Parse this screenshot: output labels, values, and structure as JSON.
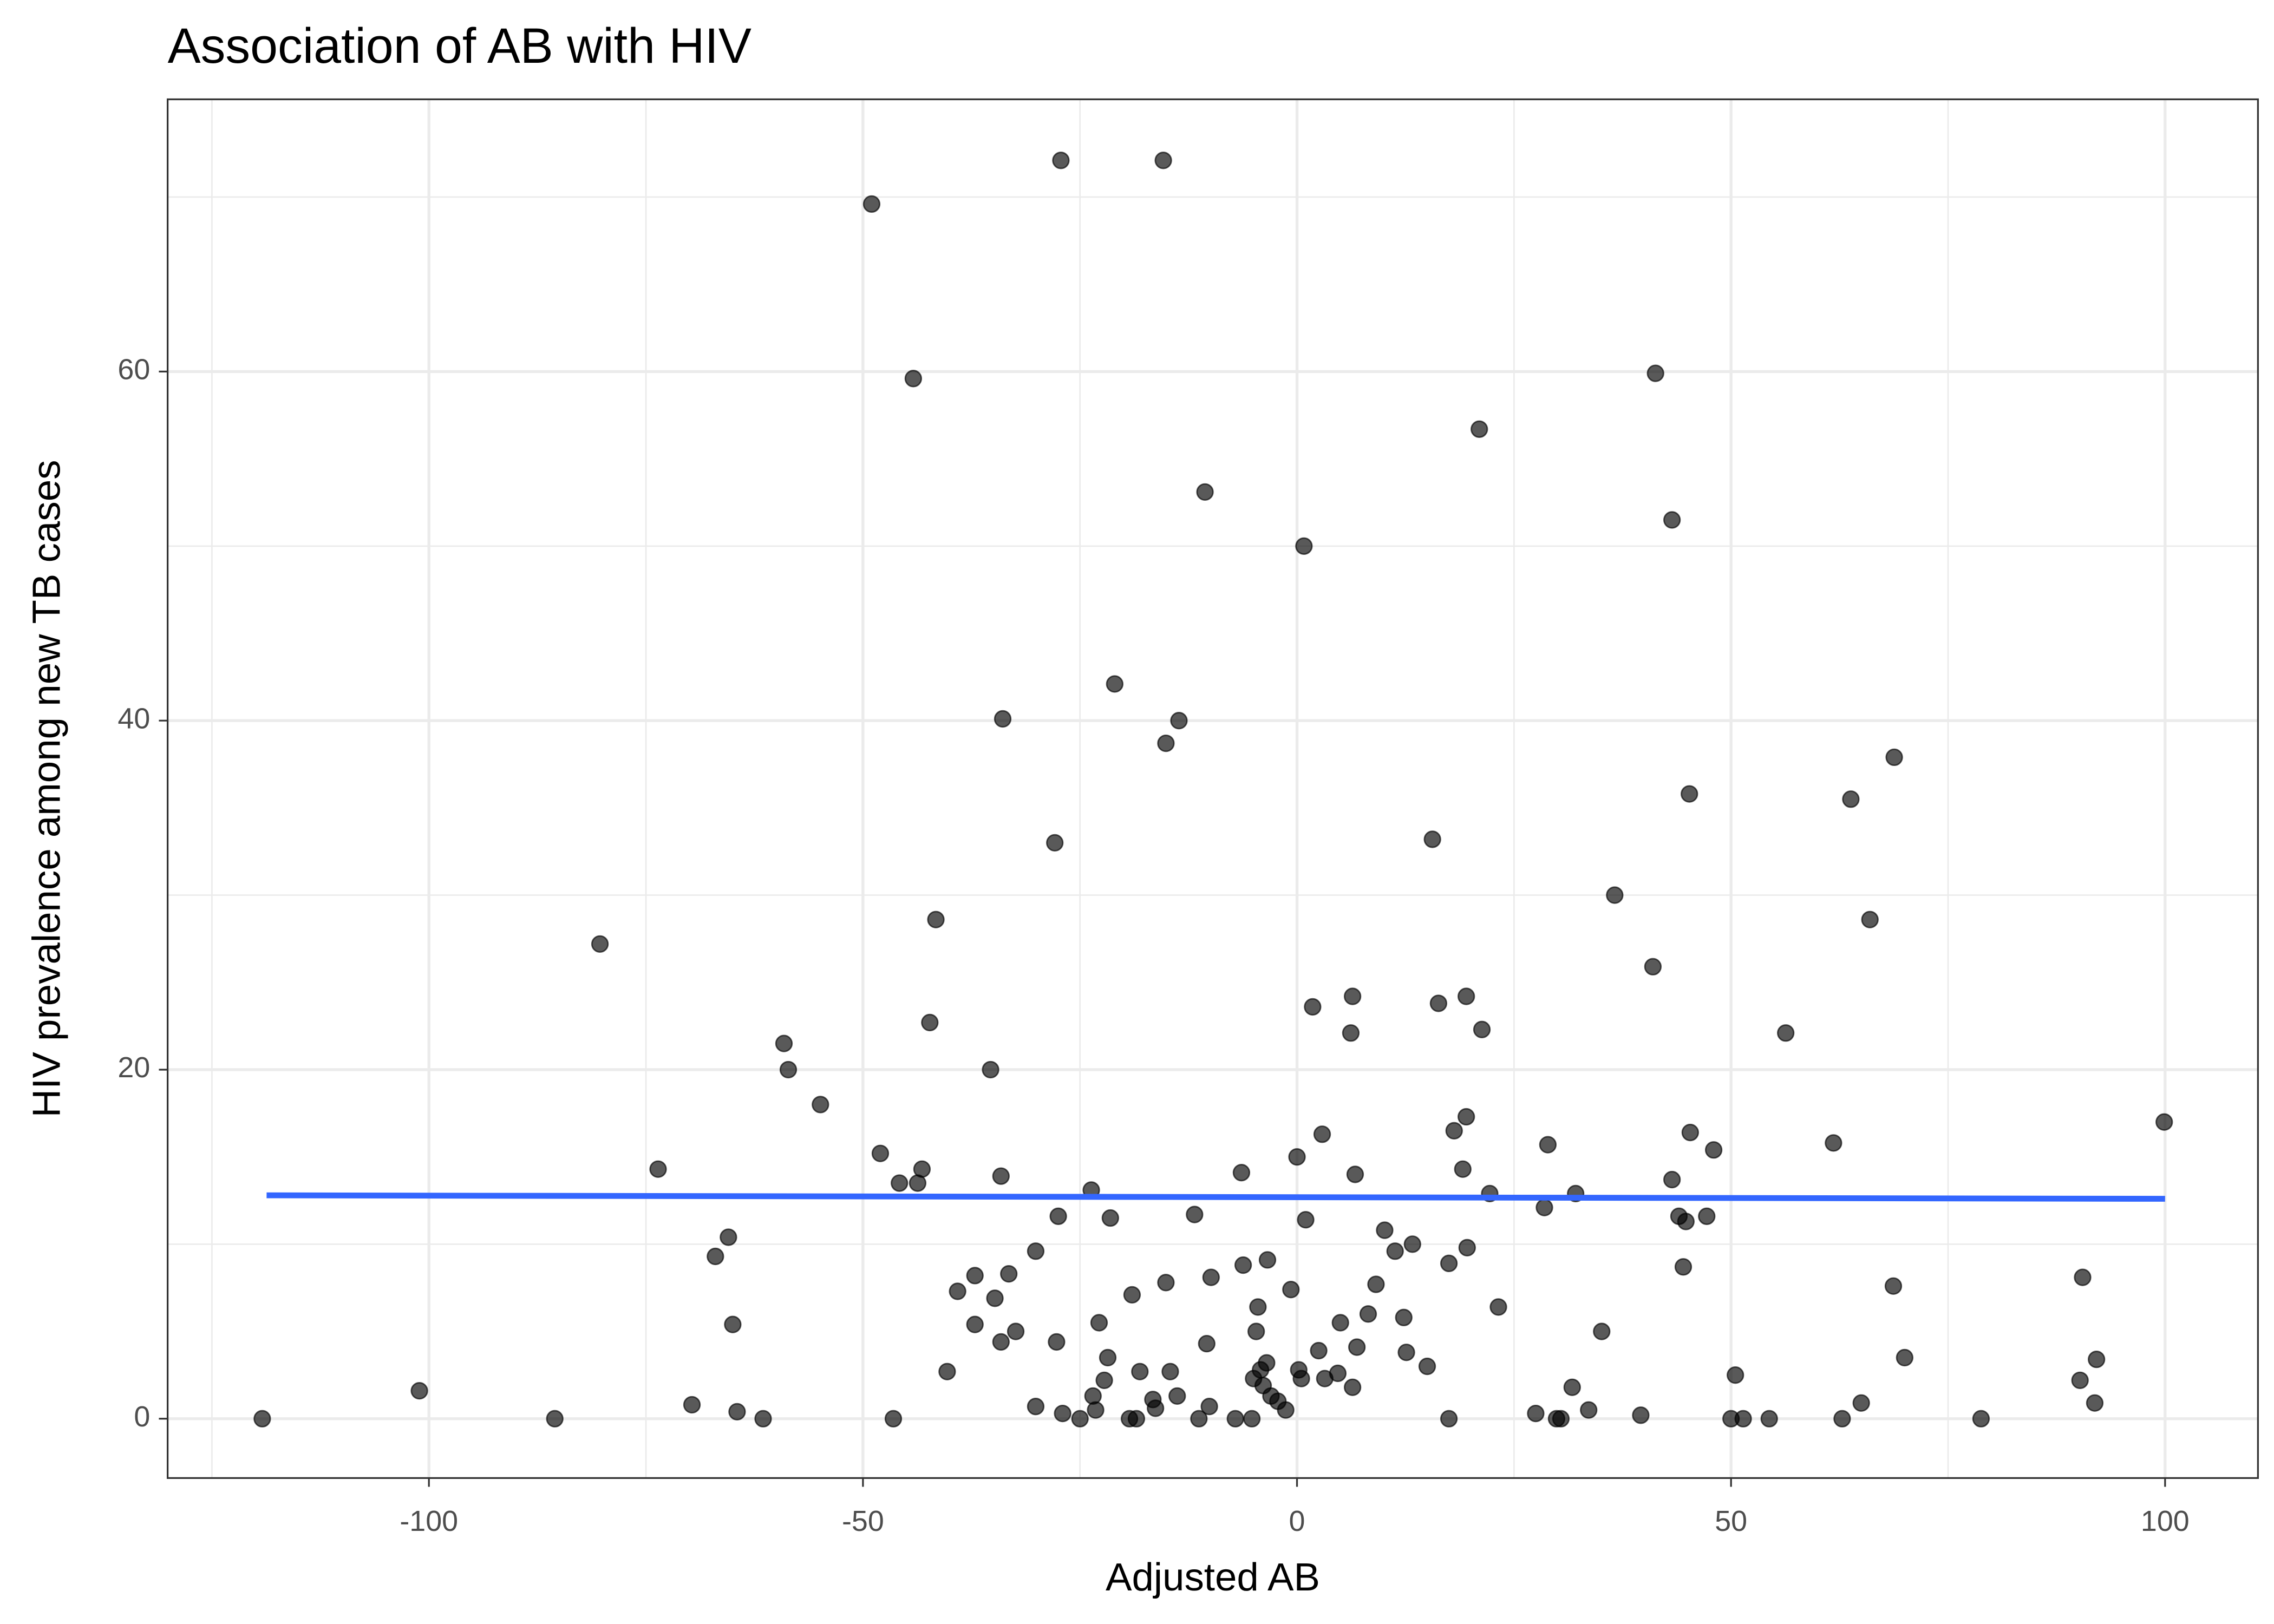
{
  "chart_data": {
    "type": "scatter",
    "title": "Association of AB with HIV",
    "x_label": "Adjusted AB",
    "y_label": "HIV prevalence among new TB cases",
    "color": "#000000",
    "opacity": 0.65,
    "x": [
      -119.2,
      -101.1,
      -85.5,
      -80.3,
      -73.6,
      -69.7,
      -67.0,
      -65.5,
      -65.0,
      -64.5,
      -61.5,
      -59.1,
      -58.6,
      -54.9,
      -49.0,
      -48.0,
      -46.5,
      -45.8,
      -44.2,
      -43.7,
      -43.2,
      -42.3,
      -41.6,
      -40.3,
      -39.1,
      -37.1,
      -37.1,
      -35.3,
      -34.8,
      -33.9,
      -34.1,
      -34.1,
      -33.2,
      -32.4,
      -30.1,
      -30.1,
      -27.9,
      -27.7,
      -27.5,
      -27.2,
      -27.0,
      -25.0,
      -23.7,
      -23.5,
      -23.2,
      -22.8,
      -22.2,
      -21.8,
      -21.5,
      -21.0,
      -19.3,
      -19.0,
      -18.5,
      -18.1,
      -16.6,
      -16.3,
      -15.4,
      -15.1,
      -15.1,
      -14.6,
      -13.8,
      -13.6,
      -11.8,
      -11.3,
      -10.6,
      -10.4,
      -10.1,
      -9.9,
      -7.1,
      -6.4,
      -6.2,
      -5.2,
      -5.0,
      -4.7,
      -4.5,
      -4.2,
      -3.9,
      -3.5,
      -3.4,
      -3.0,
      -2.2,
      -1.3,
      -0.7,
      0,
      0.2,
      0.5,
      0.8,
      1.0,
      1.8,
      2.5,
      2.9,
      3.2,
      4.7,
      5.0,
      6.2,
      6.4,
      6.4,
      6.9,
      6.7,
      8.2,
      9.1,
      10.1,
      11.3,
      12.3,
      12.6,
      13.3,
      15.0,
      15.6,
      16.3,
      17.5,
      17.5,
      18.1,
      19.1,
      19.5,
      19.5,
      19.6,
      21.0,
      21.3,
      22.2,
      23.2,
      27.5,
      28.5,
      28.9,
      29.9,
      30.4,
      31.7,
      32.1,
      33.6,
      35.1,
      36.6,
      39.6,
      41.0,
      41.3,
      43.2,
      43.2,
      44.0,
      44.5,
      44.8,
      45.2,
      45.3,
      47.2,
      48.0,
      50.0,
      50.5,
      51.4,
      54.4,
      56.3,
      61.8,
      62.8,
      63.8,
      65.0,
      66.0,
      68.7,
      68.8,
      70.0,
      78.8,
      90.2,
      90.5,
      91.9,
      92.1,
      99.9
    ],
    "y": [
      0,
      1.6,
      0,
      27.2,
      14.3,
      0.8,
      9.3,
      10.4,
      5.4,
      0.4,
      0,
      21.5,
      20,
      18,
      69.6,
      15.2,
      0,
      13.5,
      59.6,
      13.5,
      14.3,
      22.7,
      28.6,
      2.7,
      7.3,
      5.4,
      8.2,
      20,
      6.9,
      40.1,
      13.9,
      4.4,
      8.3,
      5.0,
      9.6,
      0.7,
      33.0,
      4.4,
      11.6,
      72.1,
      0.3,
      0,
      13.1,
      1.3,
      0.5,
      5.5,
      2.2,
      3.5,
      11.5,
      42.1,
      0,
      7.1,
      0,
      2.7,
      1.1,
      0.6,
      72.1,
      38.7,
      7.8,
      2.7,
      1.3,
      40.0,
      11.7,
      0,
      53.1,
      4.3,
      0.7,
      8.1,
      0,
      14.1,
      8.8,
      0,
      2.3,
      5.0,
      6.4,
      2.8,
      1.9,
      3.2,
      9.1,
      1.3,
      1.0,
      0.5,
      7.4,
      15.0,
      2.8,
      2.3,
      50.0,
      11.4,
      23.6,
      3.9,
      16.3,
      2.3,
      2.6,
      5.5,
      22.1,
      24.2,
      1.8,
      4.1,
      14.0,
      6.0,
      7.7,
      10.8,
      9.6,
      5.8,
      3.8,
      10.0,
      3.0,
      33.2,
      23.8,
      0,
      8.9,
      16.5,
      14.3,
      17.3,
      24.2,
      9.8,
      56.7,
      22.3,
      12.9,
      6.4,
      0.3,
      12.1,
      15.7,
      0,
      0,
      1.8,
      12.9,
      0.5,
      5.0,
      30.0,
      0.2,
      25.9,
      59.9,
      51.5,
      13.7,
      11.6,
      8.7,
      11.3,
      35.8,
      16.4,
      11.6,
      15.4,
      0,
      2.5,
      0,
      0,
      22.1,
      15.8,
      0,
      35.5,
      0.9,
      28.6,
      7.6,
      37.9,
      3.5,
      0,
      2.2,
      8.1,
      0.9,
      3.4,
      17.0
    ],
    "fit": {
      "x": [
        -118.7,
        100
      ],
      "values": [
        12.8,
        12.6
      ],
      "color": "#3366ff"
    },
    "xlim": [
      -130.1,
      110.7
    ],
    "ylim": [
      -3.4,
      75.6
    ],
    "xticks": [
      -100,
      -50,
      0,
      50,
      100
    ],
    "yticks": [
      0,
      20,
      40,
      60
    ],
    "xminor": [
      -125,
      -75,
      -25,
      25,
      75
    ],
    "yminor": [
      10,
      30,
      50,
      70
    ],
    "grid": true
  }
}
